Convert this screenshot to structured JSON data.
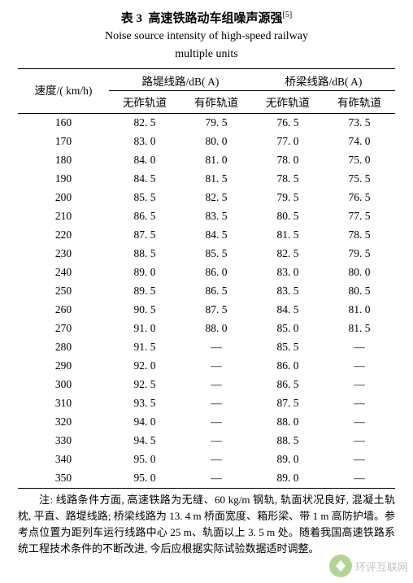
{
  "title": {
    "table_label": "表 3",
    "cn": "高速铁路动车组噪声源强",
    "sup": "[5]",
    "en_line1": "Noise source intensity of high-speed railway",
    "en_line2": "multiple units"
  },
  "headers": {
    "speed": "速度/( km/h)",
    "group1": "路堤线路/dB( A)",
    "group2": "桥梁线路/dB( A)",
    "sub_a": "无砟轨道",
    "sub_b": "有砟轨道"
  },
  "rows": [
    {
      "s": "160",
      "a": "82. 5",
      "b": "79. 5",
      "c": "76. 5",
      "d": "73. 5"
    },
    {
      "s": "170",
      "a": "83. 0",
      "b": "80. 0",
      "c": "77. 0",
      "d": "74. 0"
    },
    {
      "s": "180",
      "a": "84. 0",
      "b": "81. 0",
      "c": "78. 0",
      "d": "75. 0"
    },
    {
      "s": "190",
      "a": "84. 5",
      "b": "81. 5",
      "c": "78. 5",
      "d": "75. 5"
    },
    {
      "s": "200",
      "a": "85. 5",
      "b": "82. 5",
      "c": "79. 5",
      "d": "76. 5"
    },
    {
      "s": "210",
      "a": "86. 5",
      "b": "83. 5",
      "c": "80. 5",
      "d": "77. 5"
    },
    {
      "s": "220",
      "a": "87. 5",
      "b": "84. 5",
      "c": "81. 5",
      "d": "78. 5"
    },
    {
      "s": "230",
      "a": "88. 5",
      "b": "85. 5",
      "c": "82. 5",
      "d": "79. 5"
    },
    {
      "s": "240",
      "a": "89. 0",
      "b": "86. 0",
      "c": "83. 0",
      "d": "80. 0"
    },
    {
      "s": "250",
      "a": "89. 5",
      "b": "86. 5",
      "c": "83. 5",
      "d": "80. 5"
    },
    {
      "s": "260",
      "a": "90. 5",
      "b": "87. 5",
      "c": "84. 5",
      "d": "81. 0"
    },
    {
      "s": "270",
      "a": "91. 0",
      "b": "88. 0",
      "c": "85. 0",
      "d": "81. 5"
    },
    {
      "s": "280",
      "a": "91. 5",
      "b": "—",
      "c": "85. 5",
      "d": "—"
    },
    {
      "s": "290",
      "a": "92. 0",
      "b": "—",
      "c": "86. 0",
      "d": "—"
    },
    {
      "s": "300",
      "a": "92. 5",
      "b": "—",
      "c": "86. 5",
      "d": "—"
    },
    {
      "s": "310",
      "a": "93. 5",
      "b": "—",
      "c": "87. 5",
      "d": "—"
    },
    {
      "s": "320",
      "a": "94. 0",
      "b": "—",
      "c": "88. 0",
      "d": "—"
    },
    {
      "s": "330",
      "a": "94. 5",
      "b": "—",
      "c": "88. 5",
      "d": "—"
    },
    {
      "s": "340",
      "a": "95. 0",
      "b": "—",
      "c": "89. 0",
      "d": "—"
    },
    {
      "s": "350",
      "a": "95. 0",
      "b": "—",
      "c": "89. 0",
      "d": "—"
    }
  ],
  "note": "注: 线路条件方面, 高速铁路为无缝、60 kg/m 钢轨, 轨面状况良好, 混凝土轨枕, 平直、路堤线路; 桥梁线路为 13. 4 m 桥面宽度、箱形梁、带 1 m 高防护墙。参考点位置为距列车运行线路中心 25 m、轨面以上 3. 5 m 处。随着我国高速铁路系统工程技术条件的不断改进, 今后应根据实际试验数据适时调整。",
  "watermark": "环评互联网",
  "colors": {
    "text": "#000000",
    "background": "#ffffff",
    "watermark_text": "#9b9b9b",
    "watermark_icon": "#7fb84f"
  }
}
